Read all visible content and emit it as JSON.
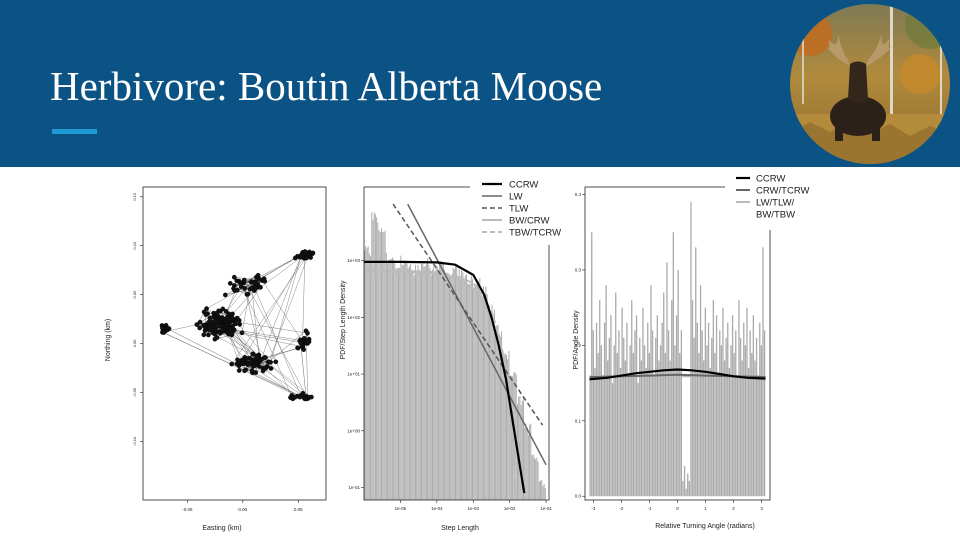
{
  "slide": {
    "title": "Herbivore: Boutin Alberta Moose",
    "photo_alt": "bull moose photo"
  },
  "colors": {
    "header": "#0b5285",
    "accent": "#1e9bd7",
    "hist": "#aaaaaa"
  },
  "chart_data": [
    {
      "type": "scatter",
      "title": "",
      "xlabel": "Easting (km)",
      "ylabel": "Northing (km)",
      "xlim": [
        -0.09,
        0.075
      ],
      "ylim": [
        -0.16,
        0.16
      ],
      "x_ticks": [
        -0.05,
        0.0,
        0.05
      ],
      "x_tick_labels": [
        "-0.05",
        "0.00",
        "0.05"
      ],
      "y_ticks": [
        -0.1,
        -0.05,
        0.0,
        0.05,
        0.1,
        0.15
      ],
      "y_tick_labels": [
        "-0.10",
        "-0.05",
        "0.00",
        "0.05",
        "0.10",
        "0.15"
      ],
      "clusters": [
        {
          "center": [
            0.055,
            0.09
          ],
          "spread": [
            0.01,
            0.006
          ],
          "n": 35
        },
        {
          "center": [
            0.005,
            0.06
          ],
          "spread": [
            0.025,
            0.012
          ],
          "n": 40
        },
        {
          "center": [
            -0.02,
            0.02
          ],
          "spread": [
            0.025,
            0.02
          ],
          "n": 110
        },
        {
          "center": [
            0.01,
            -0.02
          ],
          "spread": [
            0.025,
            0.015
          ],
          "n": 60
        },
        {
          "center": [
            0.055,
            0.0
          ],
          "spread": [
            0.01,
            0.015
          ],
          "n": 25
        },
        {
          "center": [
            0.05,
            -0.055
          ],
          "spread": [
            0.015,
            0.005
          ],
          "n": 20
        },
        {
          "center": [
            -0.07,
            0.015
          ],
          "spread": [
            0.008,
            0.006
          ],
          "n": 15
        }
      ]
    },
    {
      "type": "bar",
      "title": "",
      "xlabel": "Step Length",
      "ylabel": "PDF/Step Length Density",
      "x_scale": "log",
      "y_scale": "log",
      "xlim": [
        1e-06,
        0.12
      ],
      "ylim": [
        0.06,
        20000
      ],
      "x_ticks": [
        1e-05,
        0.0001,
        0.001,
        0.01,
        0.1
      ],
      "x_tick_labels": [
        "1e-05",
        "1e-04",
        "1e-03",
        "1e-02",
        "1e-01"
      ],
      "y_ticks": [
        0.1,
        1,
        10,
        100,
        1000
      ],
      "y_tick_labels": [
        "1e-01",
        "1e+00",
        "1e+01",
        "1e+02",
        "1e+03"
      ],
      "legend": {
        "placement": "top-right",
        "entries": [
          {
            "label": "CCRW",
            "color": "#000000",
            "dash": "solid",
            "width": 2.2
          },
          {
            "label": "LW",
            "color": "#666666",
            "dash": "solid",
            "width": 1.5
          },
          {
            "label": "TLW",
            "color": "#555555",
            "dash": "dashed",
            "width": 1.5
          },
          {
            "label": "BW/CRW",
            "color": "#bbbbbb",
            "dash": "solid",
            "width": 2
          },
          {
            "label": "TBW/TCRW",
            "color": "#bbbbbb",
            "dash": "dashed",
            "width": 2
          }
        ]
      },
      "histogram": {
        "log10_x": [
          -5.9,
          -5.7,
          -5.5,
          -5.3,
          -5.1,
          -4.9,
          -4.7,
          -4.5,
          -4.3,
          -4.1,
          -3.9,
          -3.7,
          -3.5,
          -3.3,
          -3.1,
          -2.9,
          -2.7,
          -2.5,
          -2.3,
          -2.1,
          -1.9,
          -1.7,
          -1.5,
          -1.3,
          -1.1
        ],
        "density": [
          1500,
          6000,
          3000,
          1200,
          900,
          1100,
          700,
          850,
          900,
          700,
          800,
          650,
          700,
          600,
          500,
          420,
          300,
          150,
          60,
          22,
          9,
          3.5,
          1.1,
          0.35,
          0.11
        ]
      },
      "curves": {
        "CCRW": {
          "log10_x": [
            -6,
            -5,
            -4,
            -3.5,
            -3,
            -2.7,
            -2.5,
            -2.3,
            -2.1,
            -1.9,
            -1.7,
            -1.6
          ],
          "log10_y": [
            2.98,
            2.98,
            2.97,
            2.93,
            2.75,
            2.4,
            2.0,
            1.5,
            0.9,
            0.1,
            -0.7,
            -1.1
          ]
        },
        "LW": {
          "log10_x": [
            -4.8,
            -1.0
          ],
          "log10_y": [
            4.0,
            -0.6
          ]
        },
        "TLW": {
          "log10_x": [
            -5.2,
            -1.1
          ],
          "log10_y": [
            4.0,
            0.1
          ]
        },
        "BW/CRW": {
          "log10_x": [
            -6,
            -5,
            -4,
            -3.5,
            -3,
            -2.7,
            -2.5,
            -2.2,
            -2.0,
            -1.9,
            -1.85
          ],
          "log10_y": [
            2.8,
            2.8,
            2.78,
            2.7,
            2.5,
            2.25,
            2.0,
            1.3,
            0.5,
            -0.3,
            -1.1
          ]
        },
        "TBW/TCRW": {
          "log10_x": [
            -6,
            -5,
            -4,
            -3.5,
            -3,
            -2.7,
            -2.5,
            -2.3,
            -2.1,
            -1.9,
            -1.7,
            -1.6
          ],
          "log10_y": [
            2.82,
            2.82,
            2.8,
            2.75,
            2.6,
            2.35,
            2.1,
            1.7,
            1.1,
            0.4,
            -0.5,
            -1.0
          ]
        }
      }
    },
    {
      "type": "bar",
      "title": "",
      "xlabel": "Relative Turning Angle (radians)",
      "ylabel": "PDF/Angle Density",
      "xlim": [
        -3.3,
        3.3
      ],
      "ylim": [
        -0.005,
        0.41
      ],
      "x_ticks": [
        -3,
        -2,
        -1,
        0,
        1,
        2,
        3
      ],
      "x_tick_labels": [
        "-3",
        "-2",
        "-1",
        "0",
        "1",
        "2",
        "3"
      ],
      "y_ticks": [
        0.0,
        0.1,
        0.2,
        0.3,
        0.4
      ],
      "y_tick_labels": [
        "0.0",
        "0.1",
        "0.2",
        "0.3",
        "0.4"
      ],
      "legend": {
        "placement": "top-right",
        "entries": [
          {
            "label": "CCRW",
            "color": "#000000",
            "dash": "solid",
            "width": 2.2
          },
          {
            "label": "CRW/TCRW",
            "color": "#666666",
            "dash": "solid",
            "width": 2
          },
          {
            "label": "LW/TLW/",
            "color": "#bbbbbb",
            "dash": "solid",
            "width": 2
          },
          {
            "label": "BW/TBW",
            "color": "",
            "dash": "none",
            "width": 0
          }
        ]
      },
      "histogram": {
        "x_start": -3.14,
        "x_end": 3.14,
        "density": [
          0.16,
          0.35,
          0.22,
          0.17,
          0.23,
          0.19,
          0.26,
          0.2,
          0.16,
          0.23,
          0.28,
          0.18,
          0.21,
          0.24,
          0.15,
          0.2,
          0.27,
          0.19,
          0.22,
          0.17,
          0.25,
          0.21,
          0.18,
          0.23,
          0.16,
          0.2,
          0.26,
          0.19,
          0.22,
          0.24,
          0.15,
          0.21,
          0.18,
          0.25,
          0.2,
          0.17,
          0.23,
          0.19,
          0.28,
          0.22,
          0.16,
          0.21,
          0.24,
          0.18,
          0.2,
          0.23,
          0.27,
          0.19,
          0.31,
          0.22,
          0.18,
          0.26,
          0.35,
          0.2,
          0.24,
          0.3,
          0.19,
          0.22,
          0.02,
          0.04,
          0.01,
          0.03,
          0.02,
          0.39,
          0.26,
          0.21,
          0.33,
          0.23,
          0.19,
          0.28,
          0.22,
          0.18,
          0.25,
          0.2,
          0.23,
          0.17,
          0.21,
          0.26,
          0.19,
          0.24,
          0.16,
          0.22,
          0.2,
          0.25,
          0.18,
          0.21,
          0.23,
          0.17,
          0.2,
          0.24,
          0.19,
          0.22,
          0.16,
          0.26,
          0.21,
          0.18,
          0.23,
          0.2,
          0.25,
          0.17,
          0.22,
          0.19,
          0.24,
          0.18,
          0.21,
          0.16,
          0.23,
          0.2,
          0.33,
          0.22
        ]
      },
      "curves": {
        "CCRW": {
          "x": [
            -3.14,
            -2.5,
            -2.0,
            -1.5,
            -1.0,
            -0.5,
            0.0,
            0.5,
            1.0,
            1.5,
            2.0,
            2.5,
            3.14
          ],
          "y": [
            0.155,
            0.157,
            0.16,
            0.163,
            0.165,
            0.167,
            0.168,
            0.167,
            0.165,
            0.162,
            0.159,
            0.157,
            0.156
          ]
        },
        "CRW/TCRW": {
          "x": [
            -3.14,
            -2.0,
            -1.0,
            0.0,
            1.0,
            2.0,
            3.14
          ],
          "y": [
            0.158,
            0.159,
            0.16,
            0.161,
            0.16,
            0.159,
            0.158
          ]
        },
        "LW/TLW/": {
          "x": [
            -3.14,
            3.14
          ],
          "y": [
            0.159,
            0.159
          ]
        }
      }
    }
  ]
}
